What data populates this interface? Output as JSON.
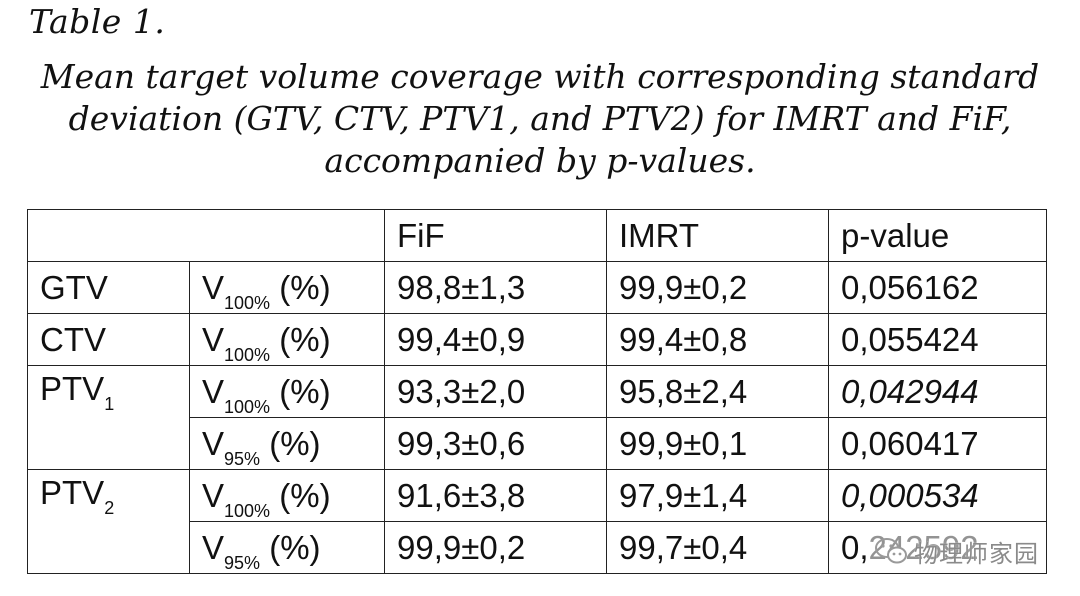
{
  "table_label": "Table 1.",
  "caption": [
    "Mean target volume coverage with corresponding standard",
    "deviation (GTV, CTV, PTV1, and PTV2) for IMRT and FiF,",
    "accompanied by p-values."
  ],
  "columns": [
    "FiF",
    "IMRT",
    "p-value"
  ],
  "groups": [
    {
      "name": "GTV",
      "sub": ""
    },
    {
      "name": "CTV",
      "sub": ""
    },
    {
      "name": "PTV",
      "sub": "1"
    },
    {
      "name": "PTV",
      "sub": "2"
    }
  ],
  "rows": [
    {
      "metric": "V",
      "metric_sub": "100%",
      "unit": "(%)",
      "fif": "98,8±1,3",
      "imrt": "99,9±0,2",
      "p": "0,056162",
      "p_italic": false
    },
    {
      "metric": "V",
      "metric_sub": "100%",
      "unit": "(%)",
      "fif": "99,4±0,9",
      "imrt": "99,4±0,8",
      "p": "0,055424",
      "p_italic": false
    },
    {
      "metric": "V",
      "metric_sub": "100%",
      "unit": "(%)",
      "fif": "93,3±2,0",
      "imrt": "95,8±2,4",
      "p": "0,042944",
      "p_italic": true
    },
    {
      "metric": "V",
      "metric_sub": "95%",
      "unit": "(%)",
      "fif": "99,3±0,6",
      "imrt": "99,9±0,1",
      "p": "0,060417",
      "p_italic": false
    },
    {
      "metric": "V",
      "metric_sub": "100%",
      "unit": "(%)",
      "fif": "91,6±3,8",
      "imrt": "97,9±1,4",
      "p": "0,000534",
      "p_italic": true
    },
    {
      "metric": "V",
      "metric_sub": "95%",
      "unit": "(%)",
      "fif": "99,9±0,2",
      "imrt": "99,7±0,4",
      "p": "0,242592",
      "p_italic": false
    }
  ],
  "watermark": {
    "text": "物理师家园",
    "icon": "wechat-icon"
  }
}
